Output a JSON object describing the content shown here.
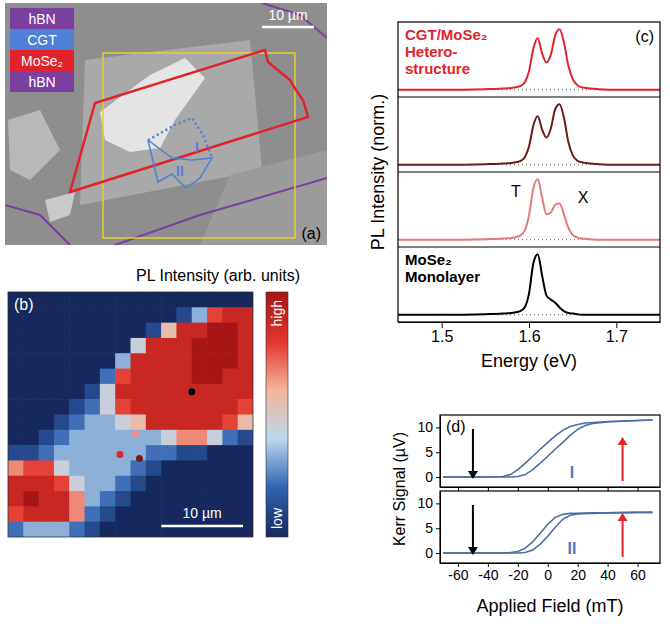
{
  "chart_data": [
    {
      "type": "micrograph",
      "panel_label": "(a)",
      "layers": [
        {
          "name": "hBN",
          "color": "#7b3fa0"
        },
        {
          "name": "CGT",
          "color": "#4f80d8"
        },
        {
          "name": "MoSe₂",
          "color": "#e3232b"
        },
        {
          "name": "hBN",
          "color": "#7b3fa0"
        }
      ],
      "regions": [
        "I",
        "II"
      ],
      "scale_bar": "10 µm"
    },
    {
      "type": "heatmap",
      "panel_label": "(b)",
      "xlim": [
        0,
        30
      ],
      "ylim": [
        0,
        30
      ],
      "tick_labels": false,
      "cells": [
        [
          0,
          0,
          0,
          0,
          0,
          0,
          0,
          0,
          0,
          0,
          0,
          0,
          0,
          0,
          0,
          0
        ],
        [
          0,
          0,
          0,
          0,
          0,
          0,
          0,
          0,
          0,
          0,
          0,
          1,
          3,
          7,
          8,
          8
        ],
        [
          0,
          0,
          0,
          0,
          0,
          0,
          0,
          0,
          0,
          1,
          5,
          8,
          8,
          9,
          9,
          8
        ],
        [
          0,
          0,
          0,
          0,
          0,
          0,
          0,
          0,
          4,
          8,
          8,
          8,
          9,
          9,
          9,
          8
        ],
        [
          0,
          0,
          0,
          0,
          0,
          0,
          0,
          3,
          8,
          8,
          8,
          8,
          9,
          9,
          9,
          8
        ],
        [
          0,
          0,
          0,
          0,
          0,
          0,
          2,
          7,
          8,
          8,
          8,
          8,
          9,
          9,
          8,
          8
        ],
        [
          0,
          0,
          0,
          0,
          0,
          1,
          4,
          8,
          8,
          8,
          8,
          8,
          8,
          8,
          8,
          8
        ],
        [
          0,
          0,
          0,
          0,
          1,
          2,
          4,
          7,
          8,
          8,
          8,
          8,
          8,
          8,
          8,
          7
        ],
        [
          0,
          0,
          0,
          1,
          2,
          3,
          3,
          4,
          5,
          8,
          8,
          8,
          8,
          8,
          7,
          5
        ],
        [
          0,
          0,
          1,
          2,
          3,
          3,
          3,
          3,
          3,
          3,
          4,
          6,
          6,
          4,
          2,
          1
        ],
        [
          1,
          1,
          2,
          3,
          3,
          3,
          3,
          3,
          3,
          2,
          2,
          1,
          1,
          0,
          0,
          0
        ],
        [
          6,
          7,
          7,
          4,
          3,
          3,
          3,
          3,
          2,
          1,
          0,
          0,
          0,
          0,
          0,
          0
        ],
        [
          8,
          8,
          8,
          7,
          4,
          3,
          3,
          2,
          1,
          0,
          0,
          0,
          0,
          0,
          0,
          0
        ],
        [
          8,
          9,
          8,
          8,
          6,
          3,
          2,
          1,
          0,
          0,
          0,
          0,
          0,
          0,
          0,
          0
        ],
        [
          7,
          8,
          8,
          8,
          6,
          2,
          1,
          0,
          0,
          0,
          0,
          0,
          0,
          0,
          0,
          0
        ],
        [
          2,
          3,
          3,
          3,
          2,
          1,
          0,
          0,
          0,
          0,
          0,
          0,
          0,
          0,
          0,
          0
        ]
      ],
      "colorbar": {
        "title": "PL Intensity (arb. units)",
        "range": [
          0,
          9
        ],
        "ticks": [
          {
            "value": 0,
            "label": "low"
          },
          {
            "value": 9,
            "label": "high"
          }
        ]
      },
      "points": {
        "x": [
          22.5,
          15.6,
          13.7,
          16.1
        ],
        "y": [
          12.2,
          17.4,
          19.9,
          20.4
        ],
        "colors": [
          "#000000",
          "#f08c8c",
          "#e3232b",
          "#7a1a12"
        ]
      },
      "scale_bar": {
        "label": "10 µm",
        "value": 10
      }
    },
    {
      "type": "line",
      "panel_label": "(c)",
      "x_label": "Energy (eV)",
      "y_label": "PL Intensity (norm.)",
      "xlim": [
        1.45,
        1.75
      ],
      "xticks": [
        1.5,
        1.6,
        1.7
      ],
      "ylim": [
        -0.12,
        1.12
      ],
      "tick_labels": "x",
      "x": [
        1.45,
        1.5,
        1.55,
        1.57,
        1.58,
        1.59,
        1.595,
        1.6,
        1.605,
        1.61,
        1.615,
        1.62,
        1.625,
        1.63,
        1.635,
        1.64,
        1.645,
        1.65,
        1.655,
        1.66,
        1.67,
        1.68,
        1.7,
        1.75
      ],
      "series": [
        {
          "name": "CGT/MoSe₂ Hetero-structure",
          "color": "#e3232b",
          "values": [
            0,
            0,
            0.01,
            0.02,
            0.03,
            0.06,
            0.12,
            0.3,
            0.68,
            0.85,
            0.6,
            0.45,
            0.58,
            0.9,
            1.0,
            0.78,
            0.4,
            0.18,
            0.08,
            0.04,
            0.02,
            0.01,
            0,
            0
          ]
        },
        {
          "color": "#6b1d15",
          "values": [
            0,
            0,
            0.01,
            0.02,
            0.03,
            0.06,
            0.12,
            0.3,
            0.65,
            0.8,
            0.58,
            0.45,
            0.6,
            0.92,
            1.0,
            0.78,
            0.38,
            0.16,
            0.07,
            0.04,
            0.02,
            0.01,
            0,
            0
          ]
        },
        {
          "color": "#e57a7a",
          "values": [
            0,
            0,
            0.01,
            0.02,
            0.03,
            0.07,
            0.15,
            0.4,
            0.85,
            1.0,
            0.7,
            0.42,
            0.45,
            0.58,
            0.6,
            0.42,
            0.2,
            0.08,
            0.04,
            0.02,
            0.01,
            0,
            0,
            0
          ]
        },
        {
          "name": "MoSe₂ Monolayer",
          "color": "#000000",
          "values": [
            0,
            0,
            0.01,
            0.02,
            0.03,
            0.06,
            0.12,
            0.35,
            0.85,
            1.0,
            0.65,
            0.32,
            0.25,
            0.2,
            0.12,
            0.06,
            0.03,
            0.02,
            0.01,
            0,
            0,
            0,
            0,
            0
          ]
        }
      ],
      "annotations": [
        {
          "text": "T",
          "x": 1.585,
          "y": 0.7,
          "series": 2
        },
        {
          "text": "X",
          "x": 1.662,
          "y": 0.6,
          "series": 2
        }
      ]
    },
    {
      "type": "line",
      "panel_label": "(d)",
      "x_label": "Applied Field (mT)",
      "y_label": "Kerr Signal (µV)",
      "xlim": [
        -72,
        75
      ],
      "xticks": [
        -60,
        -40,
        -20,
        0,
        20,
        40,
        60
      ],
      "ylim": [
        -2,
        12.5
      ],
      "yticks": [
        0,
        5,
        10
      ],
      "x": [
        -70,
        -60,
        -40,
        -30,
        -25,
        -20,
        -15,
        -10,
        -5,
        0,
        5,
        10,
        15,
        20,
        25,
        30,
        40,
        60,
        70
      ],
      "panels": [
        {
          "label": "I",
          "series": [
            {
              "color": "#4a6fa5",
              "values": [
                0,
                0,
                0,
                0,
                0,
                0.1,
                0.5,
                1.5,
                2.8,
                4.2,
                5.6,
                7,
                8.4,
                9.6,
                10.4,
                10.8,
                11.1,
                11.4,
                11.5
              ]
            },
            {
              "color": "#4a6fa5",
              "values": [
                0,
                0,
                0,
                0.1,
                0.5,
                1.5,
                2.8,
                4.2,
                5.6,
                7,
                8.3,
                9.4,
                10.2,
                10.6,
                10.9,
                11,
                11.2,
                11.4,
                11.5
              ]
            }
          ]
        },
        {
          "label": "II",
          "series": [
            {
              "color": "#4a6fa5",
              "values": [
                0,
                0,
                0,
                0,
                0,
                0,
                0.1,
                0.6,
                1.8,
                3.4,
                5.2,
                6.8,
                7.6,
                7.9,
                8,
                8,
                8.1,
                8.2,
                8.2
              ]
            },
            {
              "color": "#4a6fa5",
              "values": [
                0,
                0,
                0,
                0,
                0.1,
                0.3,
                1,
                2.3,
                4,
                5.8,
                7.2,
                7.8,
                8,
                8,
                8,
                8.1,
                8.1,
                8.2,
                8.2
              ]
            }
          ]
        }
      ],
      "arrows": [
        {
          "x": -50,
          "marker": "arrow-down",
          "color": "#000000"
        },
        {
          "x": 50,
          "marker": "arrow-up",
          "color": "#e3232b"
        }
      ]
    }
  ]
}
